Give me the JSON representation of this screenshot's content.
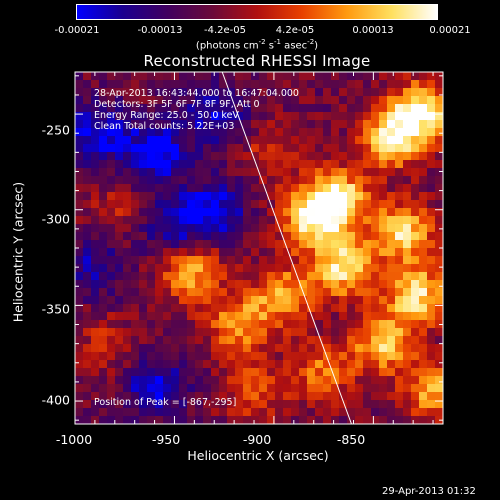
{
  "title": "Reconstructed RHESSI Image",
  "colorbar": {
    "ticks": [
      "-0.00021",
      "-0.00013",
      "-4.2e-05",
      "4.2e-05",
      "0.00013",
      "0.00021"
    ],
    "units_main": "(photons cm",
    "units_sup1": "-2",
    "units_mid1": " s",
    "units_sup2": "-1",
    "units_mid2": " asec",
    "units_sup3": "-2",
    "units_end": ")",
    "colors": [
      "#0000ff",
      "#1a0090",
      "#400060",
      "#6a0a3a",
      "#b01010",
      "#e84000",
      "#ff9a10",
      "#ffe060",
      "#ffffff"
    ]
  },
  "info": {
    "time_range": "28-Apr-2013 16:43:44.000 to 16:47:04.000",
    "detectors": "Detectors: 3F 5F 6F 7F 8F 9F, Att 0",
    "energy": "Energy Range: 25.0 - 50.0 keV",
    "clean": "Clean     Total counts: 5.22E+03",
    "peak": "Position of Peak = [-867,-295]"
  },
  "timestamp": "29-Apr-2013 01:32",
  "chart_data": {
    "type": "heatmap",
    "title": "Reconstructed RHESSI Image",
    "xlabel": "Heliocentric X (arcsec)",
    "ylabel": "Heliocentric Y (arcsec)",
    "xlim": [
      -1000,
      -815
    ],
    "ylim": [
      -412,
      -228
    ],
    "x_ticks": [
      "-1000",
      "-950",
      "-900",
      "-850"
    ],
    "x_tick_values": [
      -1000,
      -950,
      -900,
      -850
    ],
    "y_ticks": [
      "-250",
      "-300",
      "-350",
      "-400"
    ],
    "y_tick_values": [
      -250,
      -300,
      -350,
      -400
    ],
    "colorbar_range": [
      -0.00021,
      0.00021
    ],
    "peak_position": [
      -867,
      -295
    ],
    "limb_line": [
      [
        -926,
        -228
      ],
      [
        -861,
        -412
      ]
    ],
    "bright_regions": [
      {
        "x": -840,
        "y": -262,
        "intensity": 0.95
      },
      {
        "x": -825,
        "y": -248,
        "intensity": 0.9
      },
      {
        "x": -868,
        "y": -295,
        "intensity": 1.0
      },
      {
        "x": -882,
        "y": -305,
        "intensity": 0.85
      },
      {
        "x": -865,
        "y": -330,
        "intensity": 0.92
      },
      {
        "x": -835,
        "y": -312,
        "intensity": 0.88
      },
      {
        "x": -828,
        "y": -345,
        "intensity": 0.9
      },
      {
        "x": -845,
        "y": -370,
        "intensity": 0.8
      },
      {
        "x": -895,
        "y": -345,
        "intensity": 0.7
      },
      {
        "x": -918,
        "y": -360,
        "intensity": 0.65
      },
      {
        "x": -942,
        "y": -332,
        "intensity": 0.75
      },
      {
        "x": -875,
        "y": -385,
        "intensity": 0.55
      },
      {
        "x": -910,
        "y": -395,
        "intensity": 0.45
      },
      {
        "x": -820,
        "y": -395,
        "intensity": 0.7
      },
      {
        "x": -900,
        "y": -270,
        "intensity": 0.35
      },
      {
        "x": -985,
        "y": -370,
        "intensity": 0.3
      },
      {
        "x": -980,
        "y": -300,
        "intensity": 0.25
      }
    ],
    "dark_regions": [
      {
        "x": -960,
        "y": -270,
        "intensity": -0.7
      },
      {
        "x": -990,
        "y": -260,
        "intensity": -0.6
      },
      {
        "x": -930,
        "y": -250,
        "intensity": -0.5
      },
      {
        "x": -950,
        "y": -310,
        "intensity": -0.5
      },
      {
        "x": -930,
        "y": -300,
        "intensity": -0.6
      },
      {
        "x": -960,
        "y": -392,
        "intensity": -0.55
      },
      {
        "x": -990,
        "y": -330,
        "intensity": -0.4
      }
    ]
  }
}
